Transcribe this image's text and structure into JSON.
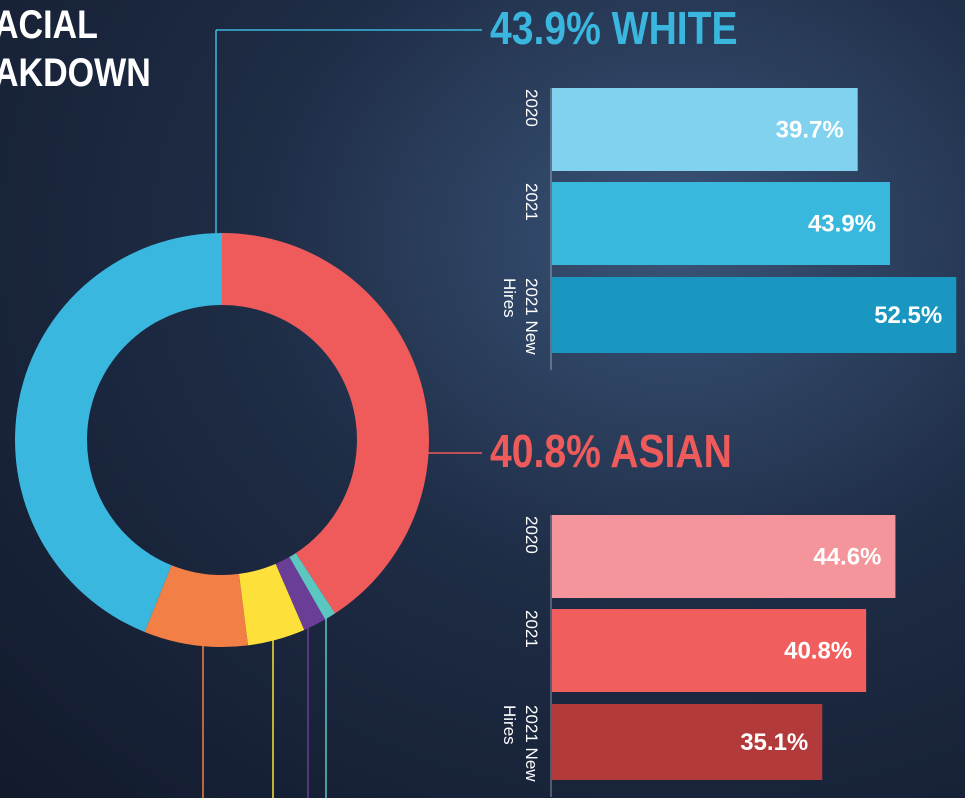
{
  "header": {
    "title_lines": [
      "ACIAL",
      "AKDOWN"
    ]
  },
  "chart_data": [
    {
      "type": "pie",
      "donut": true,
      "values": [
        40.8,
        0.9,
        1.8,
        4.5,
        8.1,
        43.9
      ],
      "colors": [
        "#ef5b5b",
        "#5cc6c0",
        "#6a3d96",
        "#fde03a",
        "#f27f45",
        "#3ab7df"
      ]
    },
    {
      "type": "barh",
      "title": "43.9% WHITE",
      "title_color": "#3ab7df",
      "categories": [
        "2020",
        "2021",
        "2021 New Hires"
      ],
      "values": [
        39.7,
        43.9,
        52.5
      ],
      "value_labels": [
        "39.7%",
        "43.9%",
        "52.5%"
      ],
      "colors": [
        "#80d2ef",
        "#38b8dd",
        "#1a97c1"
      ],
      "xlim": [
        0,
        55
      ]
    },
    {
      "type": "barh",
      "title": "40.8% ASIAN",
      "title_color": "#ef5b5b",
      "categories": [
        "2020",
        "2021",
        "2021 New Hires"
      ],
      "values": [
        44.6,
        40.8,
        35.1
      ],
      "value_labels": [
        "44.6%",
        "40.8%",
        "35.1%"
      ],
      "colors": [
        "#f4959b",
        "#f05f5e",
        "#b33a3a"
      ],
      "xlim": [
        0,
        55
      ]
    }
  ]
}
